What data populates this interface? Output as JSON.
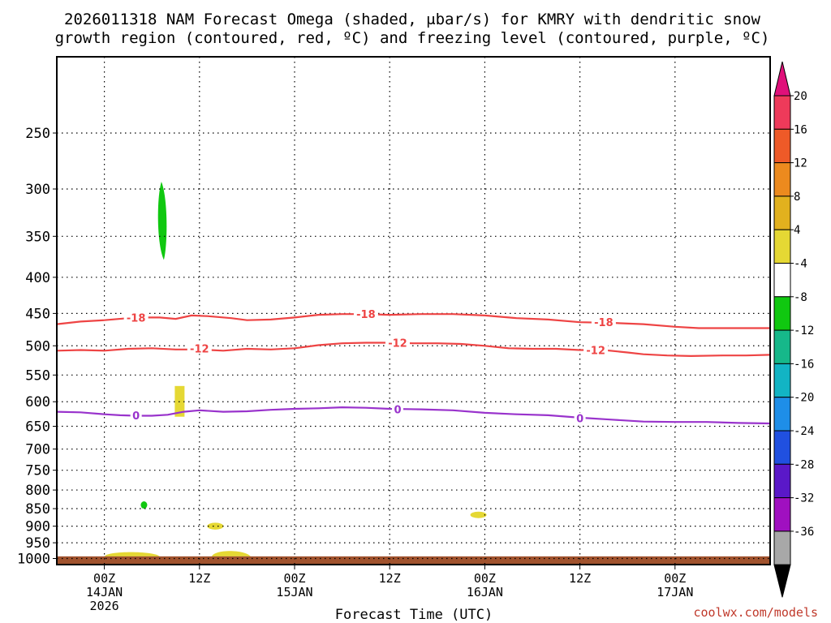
{
  "chart_data": {
    "type": "time-height cross section",
    "title_line1": "2026011318 NAM Forecast Omega (shaded, μbar/s) for KMRY with dendritic snow",
    "title_line2": "growth region (contoured, red, ºC) and freezing level (contoured, purple, ºC)",
    "xlabel": "Forecast Time (UTC)",
    "credit": "coolwx.com/models",
    "x_range_hours": [
      -6,
      84
    ],
    "x_ticks": [
      {
        "h": 0,
        "l1": "00Z",
        "l2": "14JAN",
        "l3": "2026"
      },
      {
        "h": 12,
        "l1": "12Z",
        "l2": "",
        "l3": ""
      },
      {
        "h": 24,
        "l1": "00Z",
        "l2": "15JAN",
        "l3": ""
      },
      {
        "h": 36,
        "l1": "12Z",
        "l2": "",
        "l3": ""
      },
      {
        "h": 48,
        "l1": "00Z",
        "l2": "16JAN",
        "l3": ""
      },
      {
        "h": 60,
        "l1": "12Z",
        "l2": "",
        "l3": ""
      },
      {
        "h": 72,
        "l1": "00Z",
        "l2": "17JAN",
        "l3": ""
      }
    ],
    "y_label_levels": [
      250,
      300,
      350,
      400,
      450,
      500,
      550,
      600,
      650,
      700,
      750,
      800,
      850,
      900,
      950,
      1000
    ],
    "y_range_hpa": [
      195,
      1020
    ],
    "surface_pressure_hpa": 993,
    "surface_color": "#a0522d",
    "colorbar": {
      "labels": [
        "20",
        "16",
        "12",
        "8",
        "4",
        "-4",
        "-8",
        "-12",
        "-16",
        "-20",
        "-24",
        "-28",
        "-32",
        "-36"
      ],
      "colors": [
        "#ee3a5a",
        "#ee5a28",
        "#ec8a1e",
        "#e2b11e",
        "#e5d834",
        "#ffffff",
        "#10c810",
        "#16b88a",
        "#12b4c4",
        "#1e8ee8",
        "#2050e0",
        "#5a18c8",
        "#a010c0",
        "#a8a8a8"
      ],
      "top_triangle": "#e0107a",
      "bottom_triangle": "#000000"
    },
    "contours": [
      {
        "label": "-18",
        "color": "#ee4444",
        "points": [
          [
            -6,
            466
          ],
          [
            -3,
            462
          ],
          [
            0,
            460
          ],
          [
            3,
            457
          ],
          [
            5,
            456
          ],
          [
            7,
            456
          ],
          [
            9,
            458
          ],
          [
            11,
            453
          ],
          [
            13,
            454
          ],
          [
            16,
            457
          ],
          [
            18,
            460
          ],
          [
            21,
            459
          ],
          [
            24,
            456
          ],
          [
            27,
            452
          ],
          [
            30,
            451
          ],
          [
            33,
            451
          ],
          [
            36,
            452
          ],
          [
            40,
            451
          ],
          [
            44,
            451
          ],
          [
            48,
            453
          ],
          [
            52,
            457
          ],
          [
            56,
            459
          ],
          [
            60,
            463
          ],
          [
            64,
            464
          ],
          [
            68,
            466
          ],
          [
            72,
            470
          ],
          [
            75,
            472
          ],
          [
            78,
            472
          ],
          [
            81,
            472
          ],
          [
            84,
            472
          ]
        ],
        "label_at": [
          [
            4,
            456
          ],
          [
            33,
            451
          ],
          [
            63,
            463
          ]
        ]
      },
      {
        "label": "-12",
        "color": "#ee4444",
        "points": [
          [
            -6,
            508
          ],
          [
            -3,
            507
          ],
          [
            0,
            508
          ],
          [
            3,
            505
          ],
          [
            6,
            504
          ],
          [
            9,
            506
          ],
          [
            12,
            506
          ],
          [
            15,
            508
          ],
          [
            18,
            505
          ],
          [
            21,
            506
          ],
          [
            24,
            504
          ],
          [
            27,
            499
          ],
          [
            30,
            496
          ],
          [
            33,
            495
          ],
          [
            36,
            495
          ],
          [
            39,
            496
          ],
          [
            42,
            496
          ],
          [
            45,
            497
          ],
          [
            48,
            500
          ],
          [
            51,
            504
          ],
          [
            54,
            505
          ],
          [
            57,
            505
          ],
          [
            60,
            507
          ],
          [
            63,
            507
          ],
          [
            66,
            511
          ],
          [
            68,
            514
          ],
          [
            71,
            516
          ],
          [
            74,
            517
          ],
          [
            78,
            516
          ],
          [
            81,
            516
          ],
          [
            84,
            515
          ]
        ],
        "label_at": [
          [
            12,
            504
          ],
          [
            37,
            495
          ],
          [
            62,
            507
          ]
        ]
      },
      {
        "label": "0",
        "color": "#9933cc",
        "points": [
          [
            -6,
            620
          ],
          [
            -3,
            621
          ],
          [
            0,
            625
          ],
          [
            2,
            627
          ],
          [
            4,
            628
          ],
          [
            6,
            628
          ],
          [
            8,
            626
          ],
          [
            10,
            620
          ],
          [
            12,
            617
          ],
          [
            15,
            620
          ],
          [
            18,
            619
          ],
          [
            21,
            616
          ],
          [
            24,
            614
          ],
          [
            27,
            613
          ],
          [
            30,
            611
          ],
          [
            33,
            612
          ],
          [
            36,
            614
          ],
          [
            40,
            615
          ],
          [
            44,
            617
          ],
          [
            48,
            622
          ],
          [
            52,
            625
          ],
          [
            56,
            627
          ],
          [
            60,
            632
          ],
          [
            64,
            636
          ],
          [
            68,
            640
          ],
          [
            72,
            641
          ],
          [
            76,
            641
          ],
          [
            80,
            643
          ],
          [
            84,
            644
          ]
        ],
        "label_at": [
          [
            4,
            627
          ],
          [
            37,
            615
          ],
          [
            60,
            633
          ]
        ]
      }
    ],
    "omega_regions": [
      {
        "value_class": "-4 to -8",
        "color": "#10c810",
        "shape": "tall ellipse",
        "time_hours": 7.3,
        "top_hpa": 293,
        "bottom_hpa": 378
      },
      {
        "value_class": "-4 to -8",
        "color": "#10c810",
        "shape": "small dot",
        "time_hours": 5.0,
        "top_hpa": 830,
        "bottom_hpa": 850
      },
      {
        "value_class": "4 to 8",
        "color": "#e5d834",
        "shape": "rectangle",
        "time_hours": 9.5,
        "top_hpa": 570,
        "bottom_hpa": 630
      },
      {
        "value_class": "4 to 8",
        "color": "#e5d834",
        "shape": "blob",
        "time_hours": 14.0,
        "top_hpa": 890,
        "bottom_hpa": 910
      },
      {
        "value_class": "4 to 8",
        "color": "#e5d834",
        "shape": "blob",
        "time_hours": 47.2,
        "top_hpa": 860,
        "bottom_hpa": 875
      },
      {
        "value_class": "4 to 8",
        "color": "#e5d834",
        "shape": "near-surface strip",
        "time_hours": 3.5,
        "top_hpa": 975,
        "bottom_hpa": 993
      },
      {
        "value_class": "4 to 8",
        "color": "#e5d834",
        "shape": "near-surface strip",
        "time_hours": 16.0,
        "top_hpa": 970,
        "bottom_hpa": 993
      }
    ]
  }
}
